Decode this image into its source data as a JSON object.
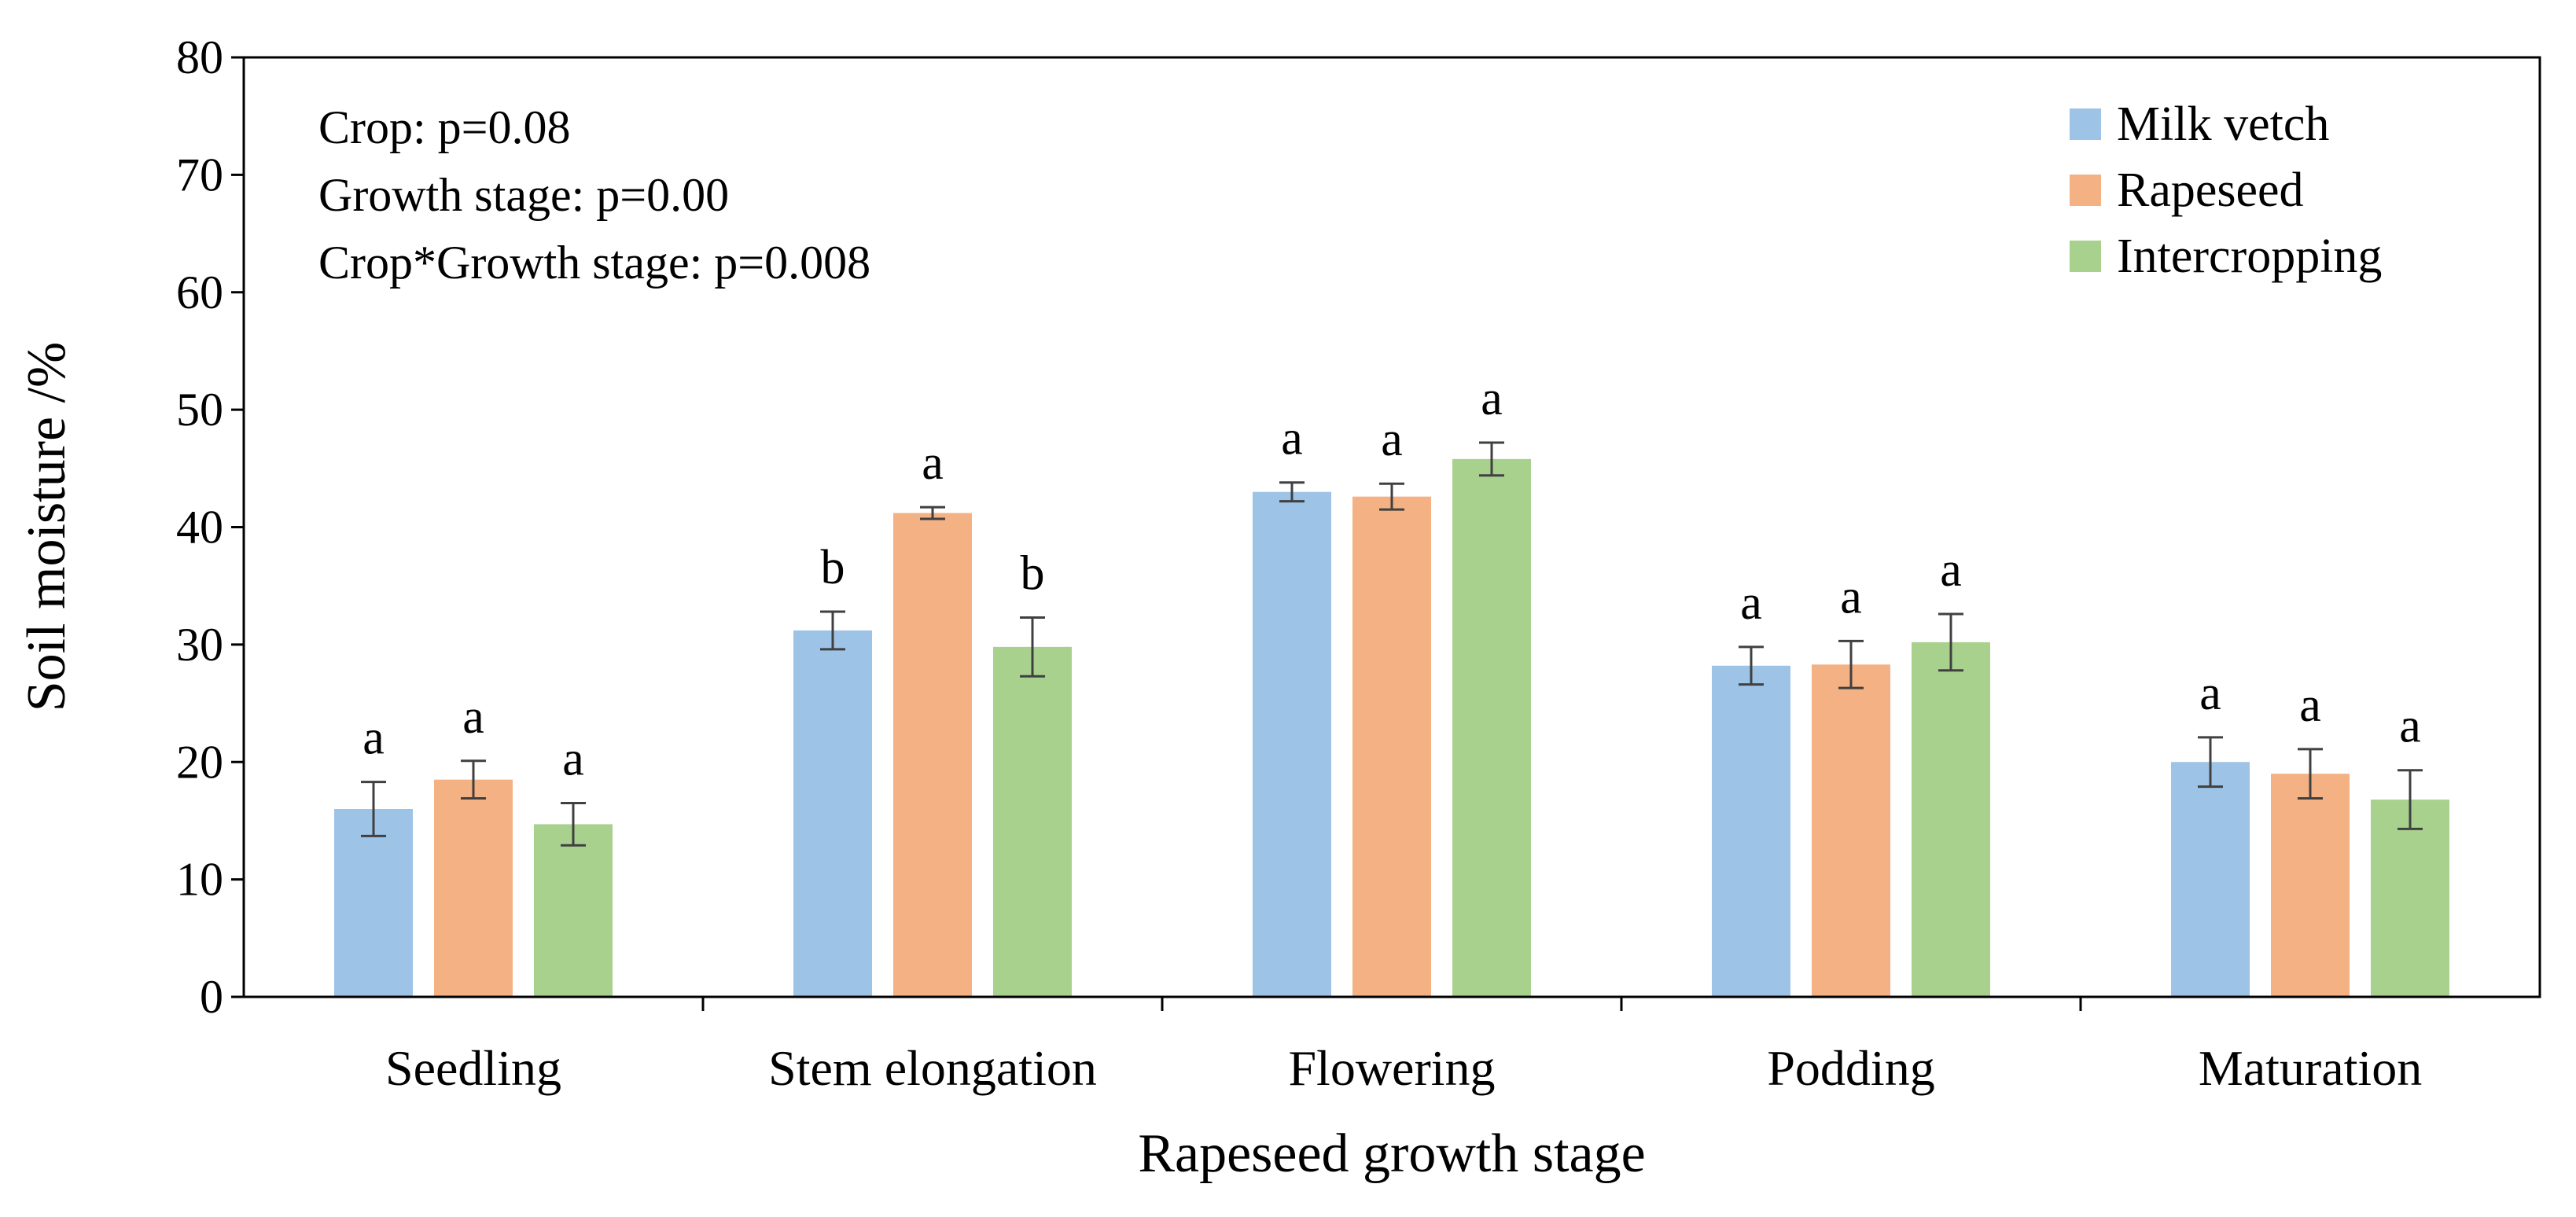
{
  "chart_data": {
    "type": "bar",
    "title": "",
    "xlabel": "Rapeseed growth stage",
    "ylabel": "Soil moisture /%",
    "ylim": [
      0,
      80
    ],
    "yticks": [
      "0",
      "10",
      "20",
      "30",
      "40",
      "50",
      "60",
      "70",
      "80"
    ],
    "grid": false,
    "legend_position": "top-right",
    "categories": [
      "Seedling",
      "Stem elongation",
      "Flowering",
      "Podding",
      "Maturation"
    ],
    "series": [
      {
        "name": "Milk vetch",
        "color": "#9DC3E6",
        "values": [
          16.0,
          31.2,
          43.0,
          28.2,
          20.0
        ],
        "errors": [
          2.3,
          1.6,
          0.8,
          1.6,
          2.1
        ],
        "letters": [
          "a",
          "b",
          "a",
          "a",
          "a"
        ]
      },
      {
        "name": "Rapeseed",
        "color": "#F4B183",
        "values": [
          18.5,
          41.2,
          42.6,
          28.3,
          19.0
        ],
        "errors": [
          1.6,
          0.5,
          1.1,
          2.0,
          2.1
        ],
        "letters": [
          "a",
          "a",
          "a",
          "a",
          "a"
        ]
      },
      {
        "name": "Intercropping",
        "color": "#A9D18E",
        "values": [
          14.7,
          29.8,
          45.8,
          30.2,
          16.8
        ],
        "errors": [
          1.8,
          2.5,
          1.4,
          2.4,
          2.5
        ],
        "letters": [
          "a",
          "b",
          "a",
          "a",
          "a"
        ]
      }
    ],
    "annotations": [
      "Crop: p=0.08",
      "Growth stage: p=0.00",
      "Crop*Growth stage: p=0.008"
    ]
  }
}
